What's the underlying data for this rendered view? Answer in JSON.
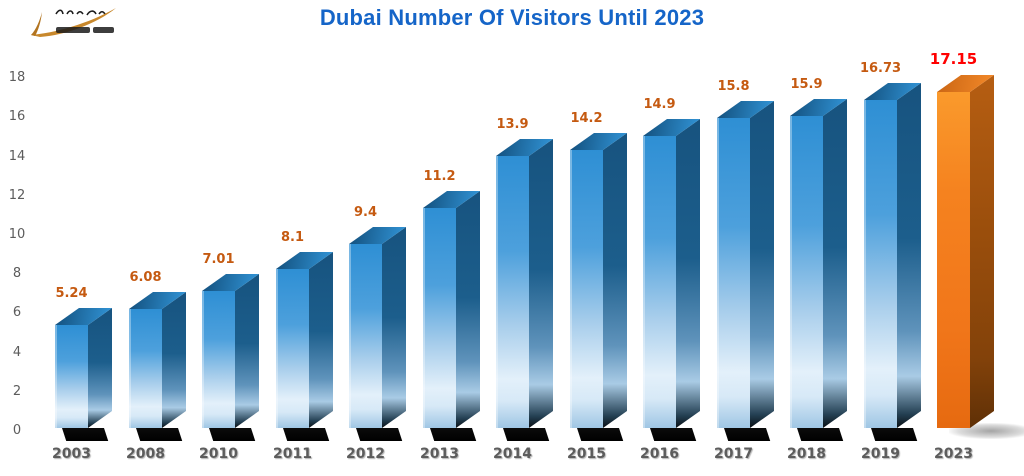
{
  "page": {
    "background": "#FFFFFF"
  },
  "logo": {
    "description": "publisher-logo-with-gold-swoosh",
    "accent_color": "#C8882C",
    "text_color": "#1B1B1B"
  },
  "title": {
    "text": "Dubai Number Of Visitors Until 2023",
    "color": "#1565C8"
  },
  "chart_data": {
    "type": "bar",
    "title": "Dubai Number Of Visitors Until 2023",
    "categories": [
      "2003",
      "2008",
      "2010",
      "2011",
      "2012",
      "2013",
      "2014",
      "2015",
      "2016",
      "2017",
      "2018",
      "2019",
      "2023"
    ],
    "values": [
      5.24,
      6.08,
      7.01,
      8.1,
      9.4,
      11.2,
      13.9,
      14.2,
      14.9,
      15.8,
      15.9,
      16.73,
      17.15
    ],
    "value_labels": [
      "5.24",
      "6.08",
      "7.01",
      "8.1",
      "9.4",
      "11.2",
      "13.9",
      "14.2",
      "14.9",
      "15.8",
      "15.9",
      "16.73",
      "17.15"
    ],
    "highlight_index": 12,
    "xlabel": "",
    "ylabel": "",
    "ylim": [
      0,
      18
    ],
    "ytick_step": 2,
    "yticks": [
      "0",
      "2",
      "4",
      "6",
      "8",
      "10",
      "12",
      "14",
      "16",
      "18"
    ],
    "grid": false,
    "legend": false,
    "bar_style": "3d",
    "colors": {
      "bar_front": "#2E8FD4",
      "bar_side": "#17537F",
      "bar_top": "#124E7B",
      "highlight_front": "#F5821F",
      "highlight_side": "#9A4E0C",
      "value_label": "#C55A11",
      "highlight_value_label": "#FF0000",
      "axis_text": "#5C5C5C",
      "title": "#1565C8"
    }
  }
}
